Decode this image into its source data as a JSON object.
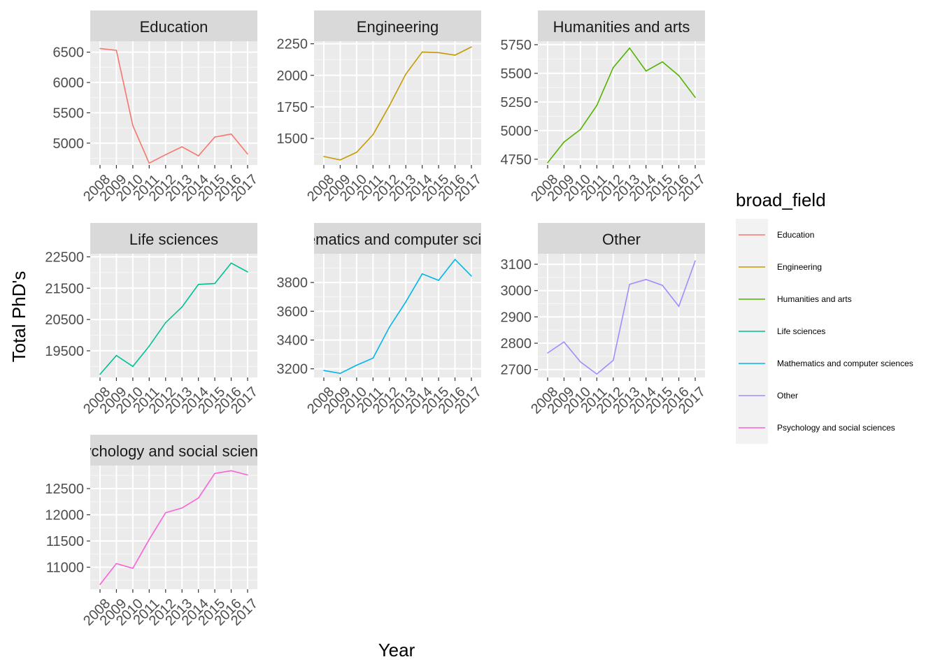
{
  "figure": {
    "xlabel": "Year",
    "ylabel": "Total PhD's"
  },
  "legend": {
    "title": "broad_field",
    "position": "right",
    "entries": [
      {
        "label": "Education",
        "color": "#F8766D"
      },
      {
        "label": "Engineering",
        "color": "#C49A00"
      },
      {
        "label": "Humanities and arts",
        "color": "#53B400"
      },
      {
        "label": "Life sciences",
        "color": "#00C094"
      },
      {
        "label": "Mathematics and computer sciences",
        "color": "#00B6EB"
      },
      {
        "label": "Other",
        "color": "#A58AFF"
      },
      {
        "label": "Psychology and social sciences",
        "color": "#FB61D7"
      }
    ]
  },
  "chart_data": [
    {
      "type": "line",
      "title": "Education",
      "color": "#F8766D",
      "x": [
        2008,
        2009,
        2010,
        2011,
        2012,
        2013,
        2014,
        2015,
        2016,
        2017
      ],
      "values": [
        6560,
        6530,
        5290,
        4670,
        4810,
        4940,
        4790,
        5100,
        5150,
        4820
      ],
      "yticks": [
        5000,
        5500,
        6000,
        6500
      ],
      "ylim": [
        4640,
        6680
      ]
    },
    {
      "type": "line",
      "title": "Engineering",
      "color": "#C49A00",
      "x": [
        2008,
        2009,
        2010,
        2011,
        2012,
        2013,
        2014,
        2015,
        2016,
        2017
      ],
      "values": [
        1357,
        1330,
        1390,
        1530,
        1760,
        2010,
        2185,
        2180,
        2160,
        2225
      ],
      "yticks": [
        1500,
        1750,
        2000,
        2250
      ],
      "ylim": [
        1290,
        2270
      ]
    },
    {
      "type": "line",
      "title": "Humanities and arts",
      "color": "#53B400",
      "x": [
        2008,
        2009,
        2010,
        2011,
        2012,
        2013,
        2014,
        2015,
        2016,
        2017
      ],
      "values": [
        4720,
        4900,
        5010,
        5220,
        5550,
        5720,
        5520,
        5600,
        5480,
        5290
      ],
      "yticks": [
        4750,
        5000,
        5250,
        5500,
        5750
      ],
      "ylim": [
        4700,
        5780
      ]
    },
    {
      "type": "line",
      "title": "Life sciences",
      "color": "#00C094",
      "x": [
        2008,
        2009,
        2010,
        2011,
        2012,
        2013,
        2014,
        2015,
        2016,
        2017
      ],
      "values": [
        18750,
        19350,
        19000,
        19650,
        20400,
        20900,
        21620,
        21650,
        22300,
        22020
      ],
      "yticks": [
        19500,
        20500,
        21500,
        22500
      ],
      "ylim": [
        18650,
        22600
      ]
    },
    {
      "type": "line",
      "title": "Mathematics and computer sciences",
      "color": "#00B6EB",
      "x": [
        2008,
        2009,
        2010,
        2011,
        2012,
        2013,
        2014,
        2015,
        2016,
        2017
      ],
      "values": [
        3188,
        3168,
        3225,
        3274,
        3490,
        3665,
        3860,
        3815,
        3960,
        3845
      ],
      "yticks": [
        3200,
        3400,
        3600,
        3800
      ],
      "ylim": [
        3140,
        4000
      ]
    },
    {
      "type": "line",
      "title": "Other",
      "color": "#A58AFF",
      "x": [
        2008,
        2009,
        2010,
        2011,
        2012,
        2013,
        2014,
        2015,
        2016,
        2017
      ],
      "values": [
        2763,
        2805,
        2729,
        2683,
        2735,
        3024,
        3042,
        3020,
        2940,
        3113
      ],
      "yticks": [
        2700,
        2800,
        2900,
        3000,
        3100
      ],
      "ylim": [
        2670,
        3140
      ]
    },
    {
      "type": "line",
      "title": "Psychology and social sciences",
      "color": "#FB61D7",
      "x": [
        2008,
        2009,
        2010,
        2011,
        2012,
        2013,
        2014,
        2015,
        2016,
        2017
      ],
      "values": [
        10670,
        11070,
        10980,
        11530,
        12040,
        12130,
        12320,
        12790,
        12840,
        12760
      ],
      "yticks": [
        11000,
        11500,
        12000,
        12500
      ],
      "ylim": [
        10580,
        12940
      ]
    }
  ]
}
